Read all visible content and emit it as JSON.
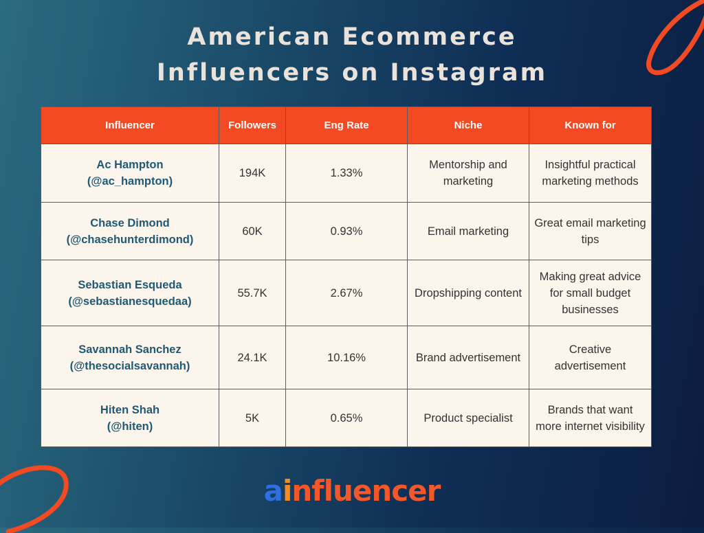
{
  "colors": {
    "header_bg": "#f44a23",
    "cell_bg": "#fbf5ec",
    "name_text": "#1f5975",
    "title_text": "#e9e3dc",
    "accent_stroke": "#f44a23"
  },
  "title": {
    "line1": "American Ecommerce",
    "line2": "Influencers on Instagram"
  },
  "chart_data": {
    "type": "table",
    "columns": [
      "Influencer",
      "Followers",
      "Eng Rate",
      "Niche",
      "Known for"
    ],
    "rows": [
      {
        "name": "Ac Hampton",
        "handle": "(@ac_hampton)",
        "followers": "194K",
        "eng_rate": "1.33%",
        "niche": "Mentorship and marketing",
        "known_for": "Insightful practical marketing methods"
      },
      {
        "name": "Chase Dimond",
        "handle": "(@chasehunterdimond)",
        "followers": "60K",
        "eng_rate": "0.93%",
        "niche": "Email marketing",
        "known_for": "Great email marketing tips"
      },
      {
        "name": "Sebastian Esqueda",
        "handle": "(@sebastianesquedaa)",
        "followers": "55.7K",
        "eng_rate": "2.67%",
        "niche": "Dropshipping content",
        "known_for": "Making great advice for small budget businesses"
      },
      {
        "name": "Savannah Sanchez",
        "handle": "(@thesocialsavannah)",
        "followers": "24.1K",
        "eng_rate": "10.16%",
        "niche": "Brand advertisement",
        "known_for": "Creative advertisement"
      },
      {
        "name": "Hiten Shah",
        "handle": "(@hiten)",
        "followers": "5K",
        "eng_rate": "0.65%",
        "niche": "Product specialist",
        "known_for": "Brands that want more internet visibility"
      }
    ]
  },
  "logo": {
    "part1": "a",
    "part2": "i",
    "part3": "nfluencer"
  }
}
